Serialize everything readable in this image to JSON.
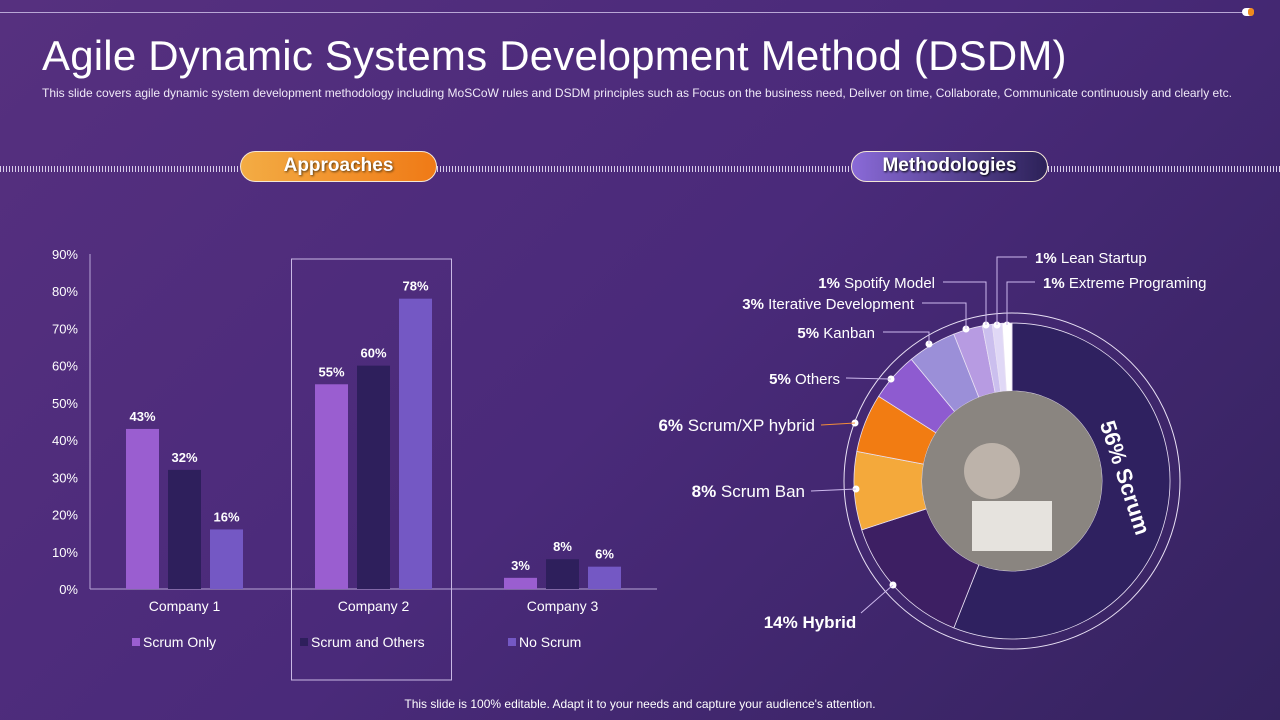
{
  "title": "Agile Dynamic Systems Development Method (DSDM)",
  "subtitle": "This slide covers agile dynamic system development  methodology including MoSCoW rules and DSDM principles such as Focus on the business need, Deliver on time, Collaborate, Communicate continuously and clearly etc.",
  "sections": {
    "approaches": "Approaches",
    "methodologies": "Methodologies"
  },
  "footer": "This slide is 100% editable. Adapt it to your needs and capture your audience's attention.",
  "chart_data": [
    {
      "type": "bar",
      "categories": [
        "Company 1",
        "Company 2",
        "Company 3"
      ],
      "series": [
        {
          "name": "Scrum Only",
          "values": [
            43,
            55,
            3
          ],
          "color": "#9a5ed0"
        },
        {
          "name": "Scrum and Others",
          "values": [
            32,
            60,
            8
          ],
          "color": "#2e1f5c"
        },
        {
          "name": "No Scrum",
          "values": [
            16,
            78,
            6
          ],
          "color": "#7458c4"
        }
      ],
      "ylim": [
        0,
        90
      ],
      "yticks": [
        "0%",
        "10%",
        "20%",
        "30%",
        "40%",
        "50%",
        "60%",
        "70%",
        "80%",
        "90%"
      ],
      "value_suffix": "%",
      "legend": "bottom",
      "highlighted_category": "Company 2"
    },
    {
      "type": "pie",
      "donut": true,
      "slices": [
        {
          "label": "Scrum",
          "value": 56,
          "color": "#2f2160"
        },
        {
          "label": "Hybrid",
          "value": 14,
          "color": "#3d1f63"
        },
        {
          "label": "Scrum Ban",
          "value": 8,
          "color": "#f4a93b"
        },
        {
          "label": "Scrum/XP hybrid",
          "value": 6,
          "color": "#f27c12"
        },
        {
          "label": "Others",
          "value": 5,
          "color": "#8e5bd0"
        },
        {
          "label": "Kanban",
          "value": 5,
          "color": "#9b8fd8"
        },
        {
          "label": "Iterative Development",
          "value": 3,
          "color": "#b79be2"
        },
        {
          "label": "Spotify Model",
          "value": 1,
          "color": "#cbbfee"
        },
        {
          "label": "Lean Startup",
          "value": 1,
          "color": "#e0d8f6"
        },
        {
          "label": "Extreme Programing",
          "value": 1,
          "color": "#ffffff"
        }
      ]
    }
  ]
}
